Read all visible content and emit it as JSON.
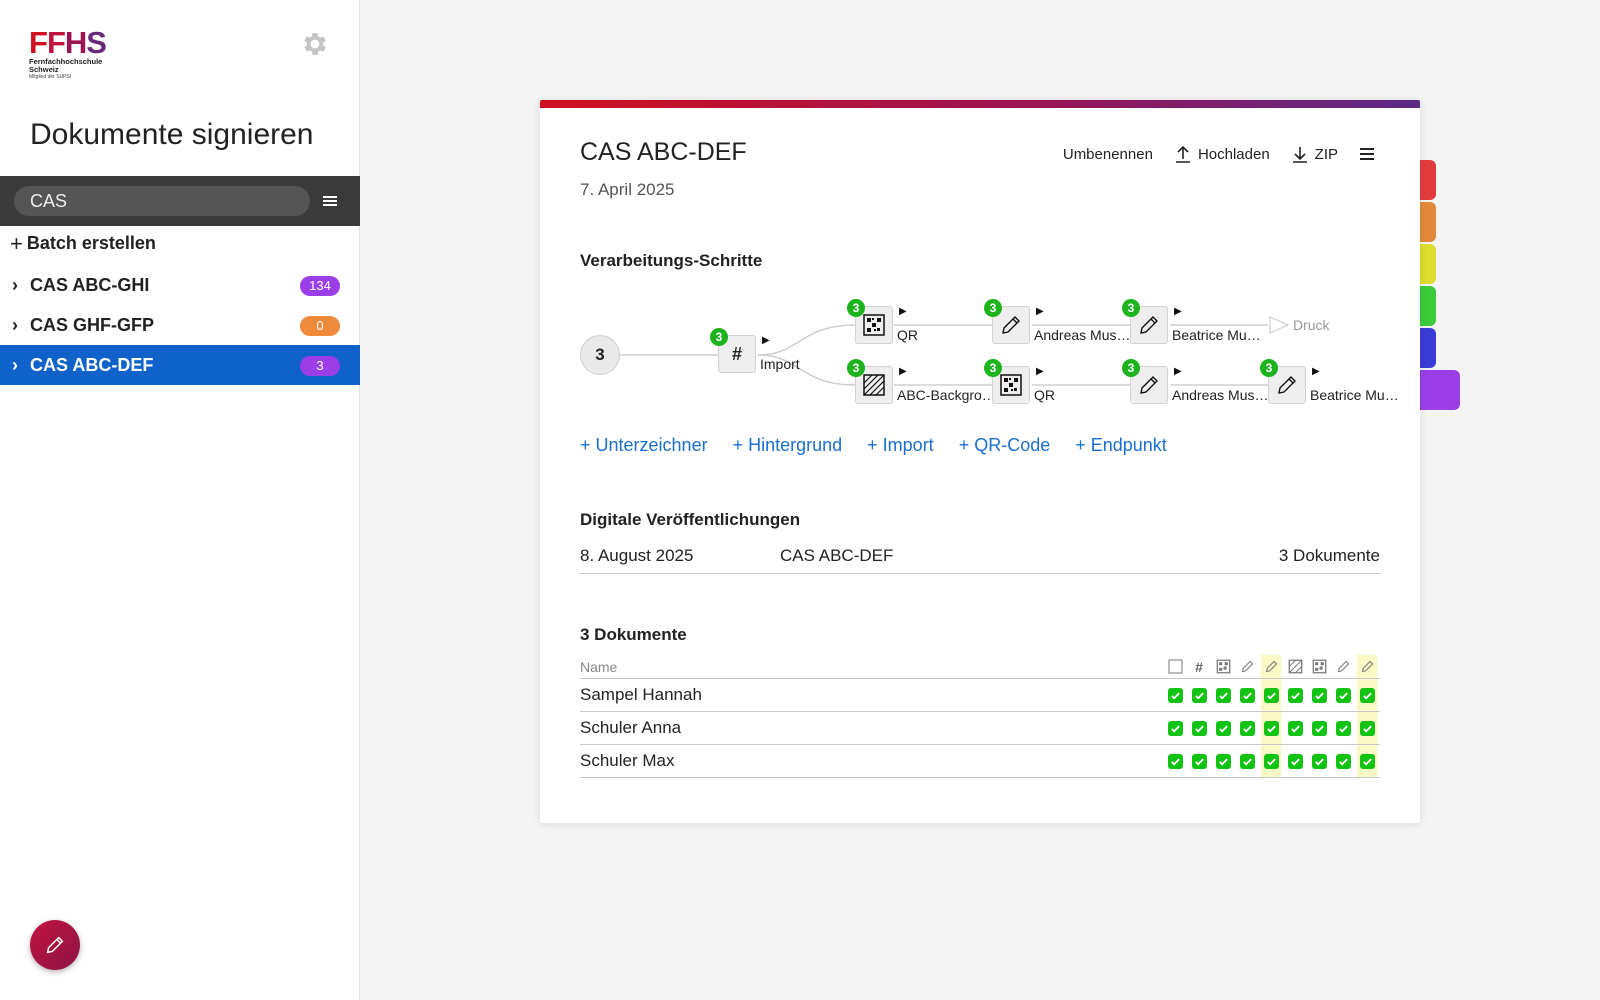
{
  "sidebar": {
    "logo": {
      "text": "FFHS",
      "line1": "Fernfachhochschule",
      "line2": "Schweiz",
      "line3": "Mitglied der SUPSI"
    },
    "title": "Dokumente signieren",
    "search": {
      "value": "CAS"
    },
    "batch_create_label": "Batch erstellen",
    "batches": [
      {
        "name": "CAS ABC-GHI",
        "count": "134",
        "color": "#9b3ee8",
        "active": false
      },
      {
        "name": "CAS GHF-GFP",
        "count": "0",
        "color": "#ee8a3a",
        "active": false
      },
      {
        "name": "CAS ABC-DEF",
        "count": "3",
        "color": "#9b3ee8",
        "active": true
      }
    ]
  },
  "color_tabs": [
    "#e23b3b",
    "#e38a3a",
    "#dede2f",
    "#3bcc3b",
    "#3b3bd6",
    "#9b3ee8"
  ],
  "card": {
    "title": "CAS ABC-DEF",
    "date": "7. April 2025",
    "actions": {
      "rename": "Umbenennen",
      "upload": "Hochladen",
      "zip": "ZIP"
    },
    "steps_heading": "Verarbeitungs-Schritte",
    "flow": {
      "start": "3",
      "import": {
        "count": "3",
        "label": "Import"
      },
      "top": [
        {
          "count": "3",
          "label": "QR",
          "icon": "qr-icon"
        },
        {
          "count": "3",
          "label": "Andreas Mus…",
          "icon": "pencil-icon"
        },
        {
          "count": "3",
          "label": "Beatrice Mu…",
          "icon": "pencil-icon"
        }
      ],
      "end_label": "Druck",
      "bottom": [
        {
          "count": "3",
          "label": "ABC-Backgro…",
          "icon": "background-icon"
        },
        {
          "count": "3",
          "label": "QR",
          "icon": "qr-icon"
        },
        {
          "count": "3",
          "label": "Andreas Mus…",
          "icon": "pencil-icon"
        },
        {
          "count": "3",
          "label": "Beatrice Mu…",
          "icon": "pencil-icon"
        }
      ]
    },
    "add_links": [
      "Unterzeichner",
      "Hintergrund",
      "Import",
      "QR-Code",
      "Endpunkt"
    ],
    "publications_heading": "Digitale Veröffentlichungen",
    "publication": {
      "date": "8. August 2025",
      "name": "CAS ABC-DEF",
      "docs": "3 Dokumente"
    },
    "documents_heading": "3 Dokumente",
    "table": {
      "name_header": "Name",
      "columns": [
        "checkbox-icon",
        "hash-icon",
        "qr-icon",
        "pencil-icon",
        "pencil-icon",
        "background-icon",
        "qr-icon",
        "pencil-icon",
        "pencil-icon"
      ],
      "highlight_cols": [
        4,
        8
      ],
      "rows": [
        {
          "name": "Sampel Hannah"
        },
        {
          "name": "Schuler Anna"
        },
        {
          "name": "Schuler Max"
        }
      ]
    }
  }
}
